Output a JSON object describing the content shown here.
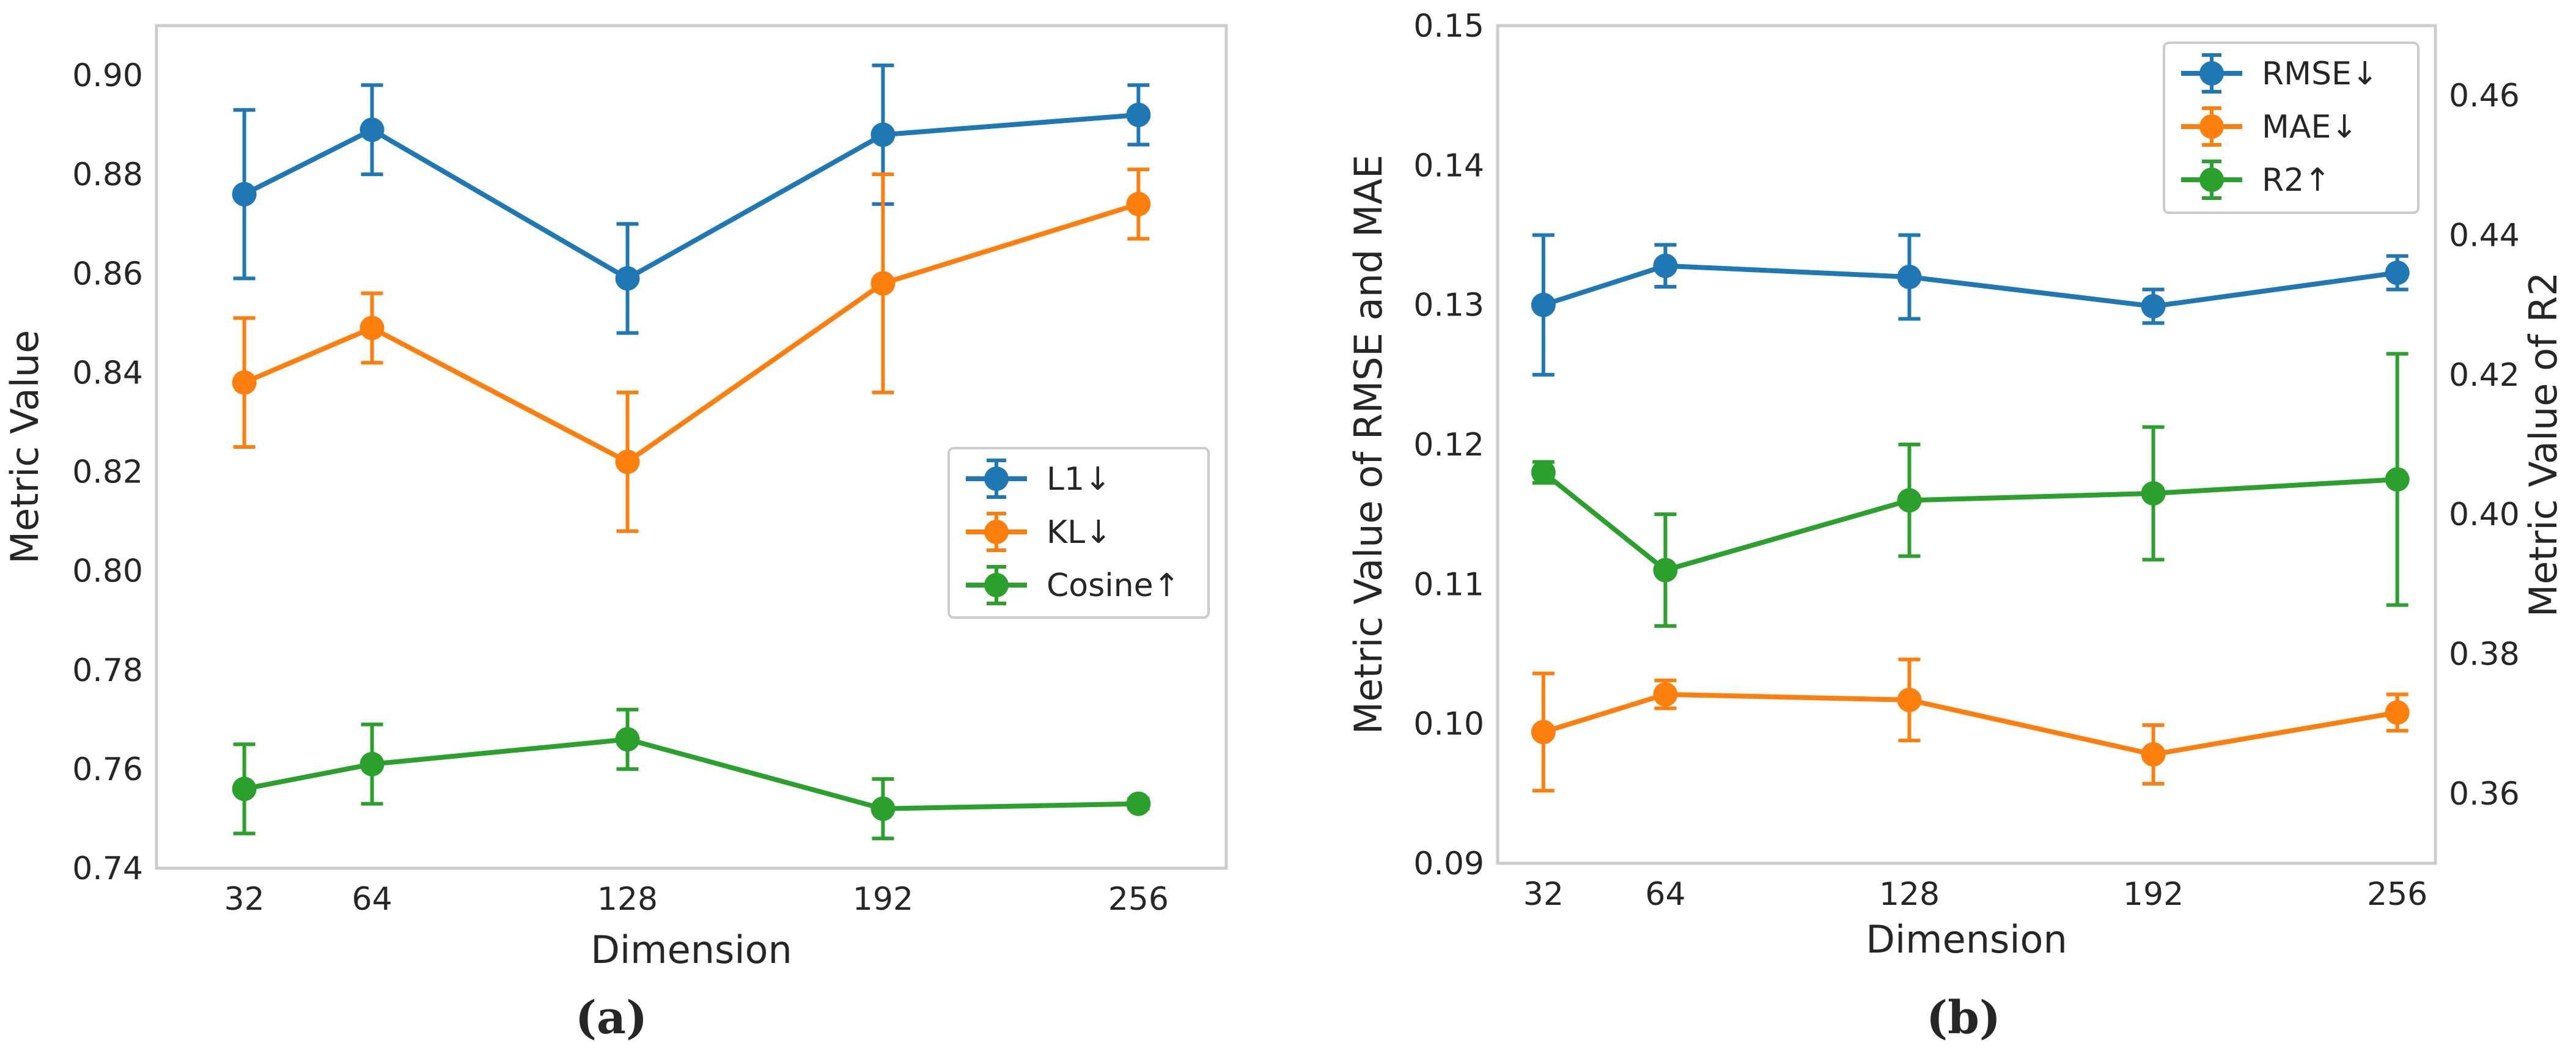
{
  "colors": {
    "blue": "#1f77b4",
    "orange": "#ff7f0e",
    "green": "#2ca02c",
    "frame": "#cccccc",
    "text": "#262626"
  },
  "chart_data": [
    {
      "type": "line",
      "caption": "(a)",
      "title": "",
      "xlabel": "Dimension",
      "ylabel": "Metric Value",
      "x": [
        32,
        64,
        128,
        192,
        256
      ],
      "xticks": [
        "32",
        "64",
        "128",
        "192",
        "256"
      ],
      "xlim": [
        10,
        278
      ],
      "ylim": [
        0.74,
        0.91
      ],
      "yticks": [
        "0.74",
        "0.76",
        "0.78",
        "0.80",
        "0.82",
        "0.84",
        "0.86",
        "0.88",
        "0.90"
      ],
      "grid": false,
      "legend_position": "center-right",
      "series": [
        {
          "name": "L1↓",
          "color": "#1f77b4",
          "values": [
            0.876,
            0.889,
            0.859,
            0.888,
            0.892
          ],
          "err": [
            0.017,
            0.009,
            0.011,
            0.014,
            0.006
          ]
        },
        {
          "name": "KL↓",
          "color": "#ff7f0e",
          "values": [
            0.838,
            0.849,
            0.822,
            0.858,
            0.874
          ],
          "err": [
            0.013,
            0.007,
            0.014,
            0.022,
            0.007
          ]
        },
        {
          "name": "Cosine↑",
          "color": "#2ca02c",
          "values": [
            0.756,
            0.761,
            0.766,
            0.752,
            0.753
          ],
          "err": [
            0.009,
            0.008,
            0.006,
            0.006,
            0.001
          ]
        }
      ]
    },
    {
      "type": "line",
      "caption": "(b)",
      "title": "",
      "xlabel": "Dimension",
      "ylabel": "Metric Value of RMSE and MAE",
      "y2label": "Metric Value of R2",
      "x": [
        32,
        64,
        128,
        192,
        256
      ],
      "xticks": [
        "32",
        "64",
        "128",
        "192",
        "256"
      ],
      "xlim": [
        20,
        266
      ],
      "ylim": [
        0.09,
        0.15
      ],
      "yticks": [
        "0.09",
        "0.10",
        "0.11",
        "0.12",
        "0.13",
        "0.14",
        "0.15"
      ],
      "y2lim": [
        0.35,
        0.47
      ],
      "y2ticks": [
        "0.36",
        "0.38",
        "0.40",
        "0.42",
        "0.44",
        "0.46"
      ],
      "grid": false,
      "legend_position": "top-right",
      "series": [
        {
          "name": "RMSE↓",
          "color": "#1f77b4",
          "axis": "left",
          "values": [
            0.13,
            0.1328,
            0.132,
            0.1299,
            0.1323
          ],
          "err": [
            0.005,
            0.0015,
            0.003,
            0.0012,
            0.0012
          ]
        },
        {
          "name": "MAE↓",
          "color": "#ff7f0e",
          "axis": "left",
          "values": [
            0.0994,
            0.1021,
            0.1017,
            0.0978,
            0.1008
          ],
          "err": [
            0.0042,
            0.001,
            0.0029,
            0.0021,
            0.0013
          ]
        },
        {
          "name": "R2↑",
          "color": "#2ca02c",
          "axis": "right",
          "values": [
            0.406,
            0.392,
            0.402,
            0.403,
            0.405
          ],
          "err": [
            0.0015,
            0.008,
            0.008,
            0.0095,
            0.018
          ]
        }
      ]
    }
  ]
}
